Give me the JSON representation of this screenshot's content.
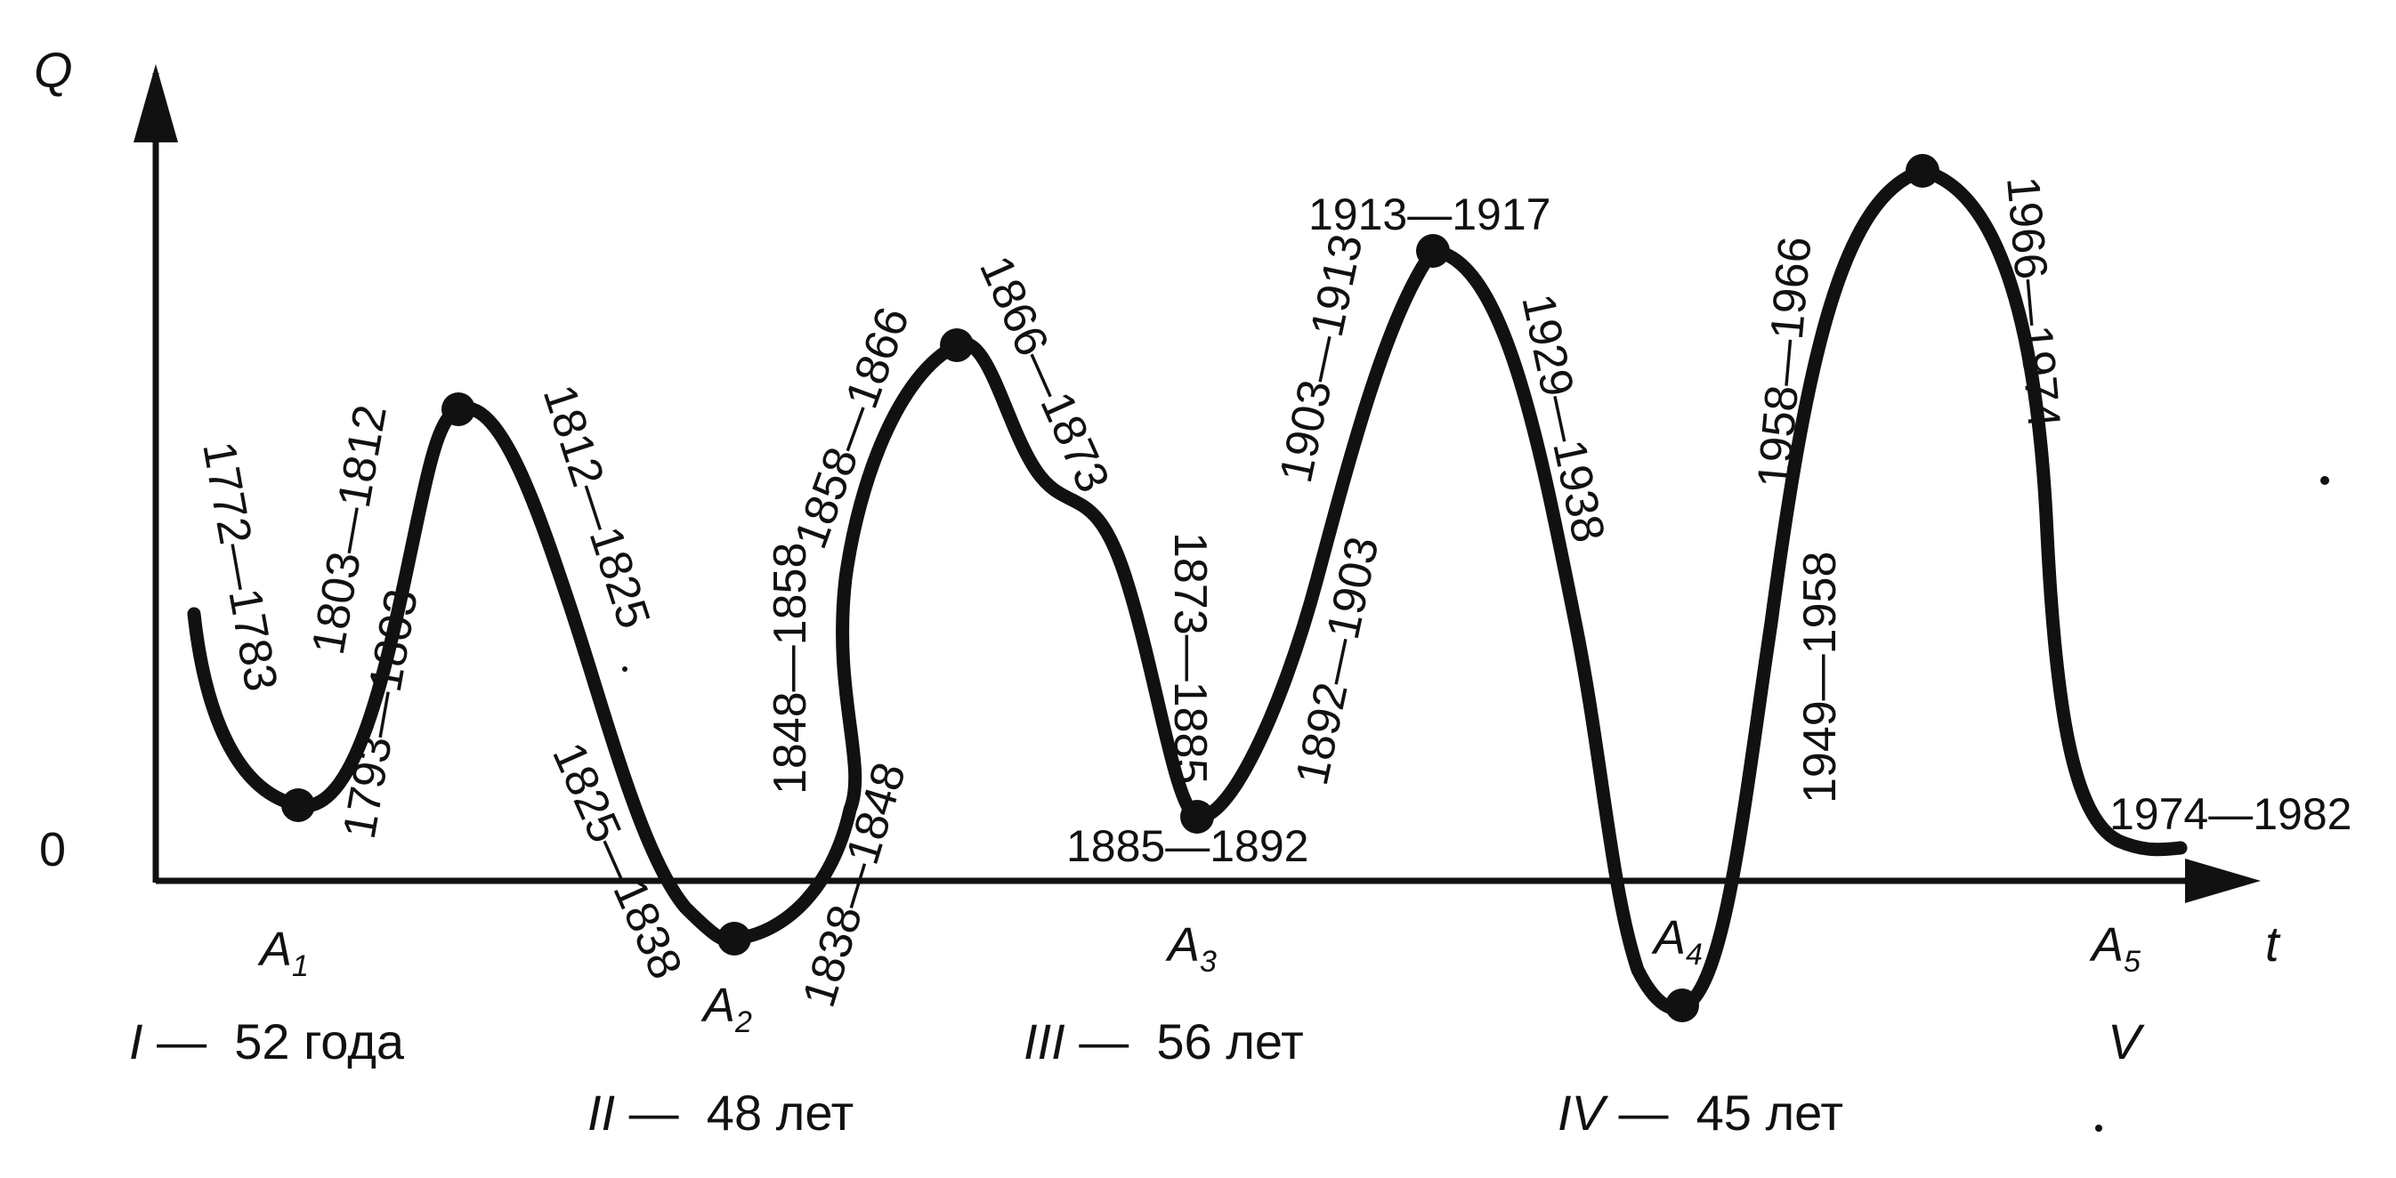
{
  "colors": {
    "ink": "#111111",
    "background": "#ffffff"
  },
  "axes": {
    "y_label": "Q",
    "x_label": "t",
    "origin_label": "0"
  },
  "points": [
    {
      "letter": "A",
      "index": "1"
    },
    {
      "letter": "A",
      "index": "2"
    },
    {
      "letter": "A",
      "index": "3"
    },
    {
      "letter": "A",
      "index": "4"
    },
    {
      "letter": "A",
      "index": "5"
    }
  ],
  "period_labels": [
    "1772—1783",
    "1793—1803",
    "1803—1812",
    "1812—1825",
    "1825—1838",
    "1838—1848",
    "1848—1858",
    "1858—1866",
    "1866—1873",
    "1873—1885",
    "1885—1892",
    "1892—1903",
    "1903—1913",
    "1913—1917",
    "1929—1938",
    "1949—1958",
    "1958—1966",
    "1966—1974",
    "1974—1982"
  ],
  "cycles": [
    {
      "roman": "I",
      "text": " —  52 года"
    },
    {
      "roman": "II",
      "text": " —  48 лет"
    },
    {
      "roman": "III",
      "text": " —  56 лет"
    },
    {
      "roman": "IV",
      "text": " —  45 лет"
    },
    {
      "roman": "V",
      "text": ""
    }
  ]
}
